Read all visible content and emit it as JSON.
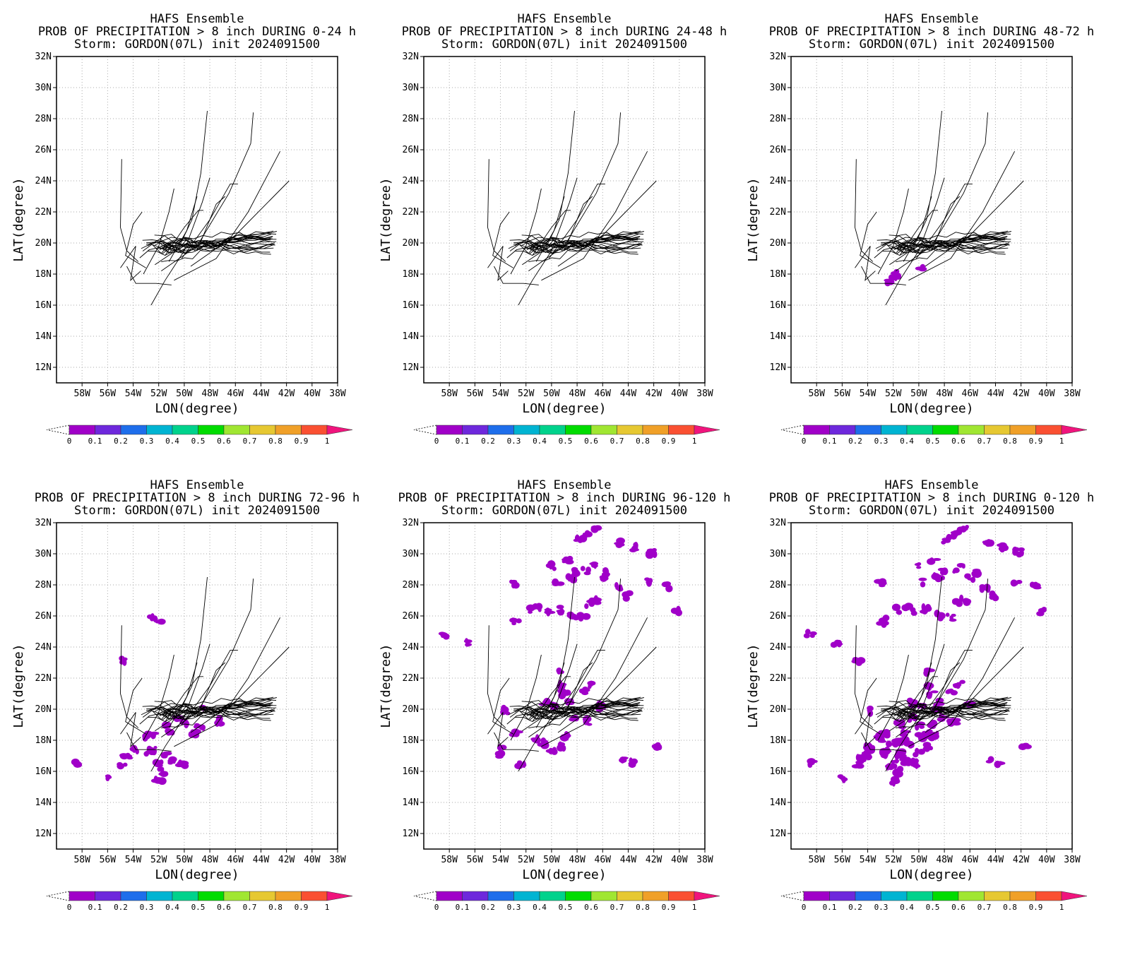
{
  "figure": {
    "colorbar": {
      "ticks": [
        "0",
        "0.1",
        "0.2",
        "0.3",
        "0.4",
        "0.5",
        "0.6",
        "0.7",
        "0.8",
        "0.9",
        "1"
      ],
      "colors": [
        "#a000c8",
        "#6e28dc",
        "#1e6eeb",
        "#00b4d2",
        "#00d28c",
        "#00dc00",
        "#a0e632",
        "#e6c832",
        "#f0a028",
        "#fa5032",
        "#f0147d"
      ]
    },
    "track_color": "#000000",
    "grid": "dotted"
  },
  "chart_data": [
    {
      "type": "map",
      "title_lines": [
        "HAFS Ensemble",
        "PROB OF PRECIPITATION > 8 inch DURING  0-24 h",
        "Storm: GORDON(07L) init 2024091500"
      ],
      "xlabel": "LON(degree)",
      "ylabel": "LAT(degree)",
      "xlim": [
        -60,
        -38
      ],
      "ylim": [
        11,
        32
      ],
      "xticks": [
        "58W",
        "56W",
        "54W",
        "52W",
        "50W",
        "48W",
        "46W",
        "44W",
        "42W",
        "40W",
        "38W"
      ],
      "yticks": [
        "32N",
        "30N",
        "28N",
        "26N",
        "24N",
        "22N",
        "20N",
        "18N",
        "16N",
        "14N",
        "12N"
      ],
      "prob_regions": []
    },
    {
      "type": "map",
      "title_lines": [
        "HAFS Ensemble",
        "PROB OF PRECIPITATION > 8 inch DURING 24-48 h",
        "Storm: GORDON(07L) init 2024091500"
      ],
      "xlabel": "LON(degree)",
      "ylabel": "LAT(degree)",
      "xlim": [
        -60,
        -38
      ],
      "ylim": [
        11,
        32
      ],
      "xticks": [
        "58W",
        "56W",
        "54W",
        "52W",
        "50W",
        "48W",
        "46W",
        "44W",
        "42W",
        "40W",
        "38W"
      ],
      "yticks": [
        "32N",
        "30N",
        "28N",
        "26N",
        "24N",
        "22N",
        "20N",
        "18N",
        "16N",
        "14N",
        "12N"
      ],
      "prob_regions": []
    },
    {
      "type": "map",
      "title_lines": [
        "HAFS Ensemble",
        "PROB OF PRECIPITATION > 8 inch DURING 48-72 h",
        "Storm: GORDON(07L) init 2024091500"
      ],
      "xlabel": "LON(degree)",
      "ylabel": "LAT(degree)",
      "xlim": [
        -60,
        -38
      ],
      "ylim": [
        11,
        32
      ],
      "xticks": [
        "58W",
        "56W",
        "54W",
        "52W",
        "50W",
        "48W",
        "46W",
        "44W",
        "42W",
        "40W",
        "38W"
      ],
      "yticks": [
        "32N",
        "30N",
        "28N",
        "26N",
        "24N",
        "22N",
        "20N",
        "18N",
        "16N",
        "14N",
        "12N"
      ],
      "prob_regions": [
        [
          -51.8,
          17.8
        ],
        [
          -52.3,
          17.6
        ],
        [
          -51.6,
          18.0
        ],
        [
          -49.8,
          18.3
        ],
        [
          -51.9,
          17.9
        ]
      ]
    },
    {
      "type": "map",
      "title_lines": [
        "HAFS Ensemble",
        "PROB OF PRECIPITATION > 8 inch DURING 72-96 h",
        "Storm: GORDON(07L) init 2024091500"
      ],
      "xlabel": "LON(degree)",
      "ylabel": "LAT(degree)",
      "xlim": [
        -60,
        -38
      ],
      "ylim": [
        11,
        32
      ],
      "xticks": [
        "58W",
        "56W",
        "54W",
        "52W",
        "50W",
        "48W",
        "46W",
        "44W",
        "42W",
        "40W",
        "38W"
      ],
      "yticks": [
        "32N",
        "30N",
        "28N",
        "26N",
        "24N",
        "22N",
        "20N",
        "18N",
        "16N",
        "14N",
        "12N"
      ],
      "prob_regions": [
        [
          -52.5,
          25.9
        ],
        [
          -52.0,
          25.7
        ],
        [
          -54.8,
          23.1
        ],
        [
          -52.5,
          17.4
        ],
        [
          -51.5,
          17.1
        ],
        [
          -52.0,
          16.5
        ],
        [
          -51.0,
          16.6
        ],
        [
          -52.8,
          17.2
        ],
        [
          -53.0,
          18.1
        ],
        [
          -50.2,
          16.5
        ],
        [
          -51.6,
          16.0
        ],
        [
          -52.0,
          15.4
        ],
        [
          -51.2,
          18.5
        ],
        [
          -50.0,
          19.0
        ],
        [
          -53.8,
          17.4
        ],
        [
          -58.3,
          16.5
        ],
        [
          -56.1,
          15.6
        ],
        [
          -54.8,
          16.5
        ],
        [
          -54.5,
          16.9
        ],
        [
          -52.6,
          18.4
        ],
        [
          -51.5,
          19.0
        ],
        [
          -49.3,
          18.4
        ],
        [
          -48.8,
          18.9
        ],
        [
          -50.5,
          19.4
        ],
        [
          -48.5,
          20.1
        ],
        [
          -47.2,
          19.2
        ]
      ]
    },
    {
      "type": "map",
      "title_lines": [
        "HAFS Ensemble",
        "PROB OF PRECIPITATION > 8 inch DURING 96-120 h",
        "Storm: GORDON(07L) init 2024091500"
      ],
      "xlabel": "LON(degree)",
      "ylabel": "LAT(degree)",
      "xlim": [
        -60,
        -38
      ],
      "ylim": [
        11,
        32
      ],
      "xticks": [
        "58W",
        "56W",
        "54W",
        "52W",
        "50W",
        "48W",
        "46W",
        "44W",
        "42W",
        "40W",
        "38W"
      ],
      "yticks": [
        "32N",
        "30N",
        "28N",
        "26N",
        "24N",
        "22N",
        "20N",
        "18N",
        "16N",
        "14N",
        "12N"
      ],
      "prob_regions": [
        [
          -47.2,
          31.3
        ],
        [
          -46.5,
          31.7
        ],
        [
          -47.8,
          30.9
        ],
        [
          -44.6,
          30.7
        ],
        [
          -43.5,
          30.4
        ],
        [
          -42.2,
          30.1
        ],
        [
          -46.5,
          29.2
        ],
        [
          -47.3,
          28.9
        ],
        [
          -46.0,
          28.5
        ],
        [
          -48.5,
          28.4
        ],
        [
          -49.5,
          28.2
        ],
        [
          -44.8,
          27.8
        ],
        [
          -44.0,
          27.3
        ],
        [
          -42.4,
          28.2
        ],
        [
          -41.0,
          27.9
        ],
        [
          -48.8,
          29.6
        ],
        [
          -48.0,
          28.9
        ],
        [
          -50.0,
          29.2
        ],
        [
          -53.0,
          28.1
        ],
        [
          -51.0,
          26.5
        ],
        [
          -51.6,
          26.4
        ],
        [
          -52.8,
          25.6
        ],
        [
          -50.3,
          26.3
        ],
        [
          -49.4,
          26.4
        ],
        [
          -48.3,
          26.0
        ],
        [
          -47.5,
          25.9
        ],
        [
          -47.0,
          26.8
        ],
        [
          -46.5,
          27.0
        ],
        [
          -45.6,
          28.8
        ],
        [
          -40.3,
          26.3
        ],
        [
          -58.5,
          24.8
        ],
        [
          -56.5,
          24.3
        ],
        [
          -49.2,
          22.5
        ],
        [
          -49.4,
          21.6
        ],
        [
          -49.0,
          21.0
        ],
        [
          -48.5,
          20.5
        ],
        [
          -49.8,
          20.3
        ],
        [
          -47.5,
          21.2
        ],
        [
          -46.8,
          21.6
        ],
        [
          -53.7,
          19.9
        ],
        [
          -52.8,
          18.4
        ],
        [
          -51.2,
          18.0
        ],
        [
          -50.6,
          17.8
        ],
        [
          -50.0,
          17.2
        ],
        [
          -49.3,
          17.6
        ],
        [
          -48.8,
          18.3
        ],
        [
          -52.3,
          16.4
        ],
        [
          -54.2,
          17.1
        ],
        [
          -53.9,
          17.5
        ],
        [
          -47.3,
          19.2
        ],
        [
          -46.0,
          20.2
        ],
        [
          -50.5,
          20.4
        ],
        [
          -44.3,
          16.8
        ],
        [
          -43.6,
          16.6
        ],
        [
          -41.7,
          17.7
        ],
        [
          -48.2,
          19.5
        ]
      ]
    },
    {
      "type": "map",
      "title_lines": [
        "HAFS Ensemble",
        "PROB OF PRECIPITATION > 8 inch DURING 0-120 h",
        "Storm: GORDON(07L) init 2024091500"
      ],
      "xlabel": "LON(degree)",
      "ylabel": "LAT(degree)",
      "xlim": [
        -60,
        -38
      ],
      "ylim": [
        11,
        32
      ],
      "xticks": [
        "58W",
        "56W",
        "54W",
        "52W",
        "50W",
        "48W",
        "46W",
        "44W",
        "42W",
        "40W",
        "38W"
      ],
      "yticks": [
        "32N",
        "30N",
        "28N",
        "26N",
        "24N",
        "22N",
        "20N",
        "18N",
        "16N",
        "14N",
        "12N"
      ],
      "prob_regions": [
        [
          -47.2,
          31.3
        ],
        [
          -46.5,
          31.7
        ],
        [
          -47.8,
          30.9
        ],
        [
          -44.6,
          30.7
        ],
        [
          -43.5,
          30.4
        ],
        [
          -42.2,
          30.1
        ],
        [
          -46.5,
          29.2
        ],
        [
          -47.3,
          28.9
        ],
        [
          -46.0,
          28.5
        ],
        [
          -48.5,
          28.4
        ],
        [
          -49.5,
          28.2
        ],
        [
          -44.8,
          27.8
        ],
        [
          -44.0,
          27.3
        ],
        [
          -42.4,
          28.2
        ],
        [
          -41.0,
          27.9
        ],
        [
          -48.8,
          29.6
        ],
        [
          -48.0,
          28.9
        ],
        [
          -50.0,
          29.2
        ],
        [
          -53.0,
          28.1
        ],
        [
          -51.0,
          26.5
        ],
        [
          -51.6,
          26.4
        ],
        [
          -52.8,
          25.6
        ],
        [
          -50.3,
          26.3
        ],
        [
          -49.4,
          26.4
        ],
        [
          -48.3,
          26.0
        ],
        [
          -47.5,
          25.9
        ],
        [
          -47.0,
          26.8
        ],
        [
          -46.5,
          27.0
        ],
        [
          -45.6,
          28.8
        ],
        [
          -40.3,
          26.3
        ],
        [
          -58.5,
          24.8
        ],
        [
          -56.5,
          24.3
        ],
        [
          -49.2,
          22.5
        ],
        [
          -49.4,
          21.6
        ],
        [
          -49.0,
          21.0
        ],
        [
          -48.5,
          20.5
        ],
        [
          -49.8,
          20.3
        ],
        [
          -47.5,
          21.2
        ],
        [
          -46.8,
          21.6
        ],
        [
          -53.7,
          19.9
        ],
        [
          -52.8,
          18.4
        ],
        [
          -51.2,
          18.0
        ],
        [
          -50.6,
          17.8
        ],
        [
          -50.0,
          17.2
        ],
        [
          -49.3,
          17.6
        ],
        [
          -48.8,
          18.3
        ],
        [
          -52.3,
          16.4
        ],
        [
          -54.2,
          17.1
        ],
        [
          -53.9,
          17.5
        ],
        [
          -47.3,
          19.2
        ],
        [
          -46.0,
          20.2
        ],
        [
          -50.5,
          20.4
        ],
        [
          -44.3,
          16.8
        ],
        [
          -43.6,
          16.6
        ],
        [
          -41.7,
          17.7
        ],
        [
          -48.2,
          19.5
        ],
        [
          -52.5,
          17.4
        ],
        [
          -51.5,
          17.1
        ],
        [
          -52.0,
          16.5
        ],
        [
          -51.0,
          16.6
        ],
        [
          -52.8,
          17.2
        ],
        [
          -53.0,
          18.1
        ],
        [
          -50.2,
          16.5
        ],
        [
          -51.6,
          16.0
        ],
        [
          -52.0,
          15.4
        ],
        [
          -51.2,
          18.5
        ],
        [
          -50.0,
          19.0
        ],
        [
          -53.8,
          17.4
        ],
        [
          -58.3,
          16.5
        ],
        [
          -56.1,
          15.6
        ],
        [
          -54.8,
          16.5
        ],
        [
          -54.5,
          16.9
        ],
        [
          -52.6,
          18.4
        ],
        [
          -51.5,
          19.0
        ],
        [
          -49.3,
          18.4
        ],
        [
          -48.8,
          18.9
        ],
        [
          -50.5,
          19.4
        ],
        [
          -48.5,
          20.1
        ],
        [
          -47.2,
          19.2
        ],
        [
          -51.8,
          17.8
        ],
        [
          -52.3,
          17.6
        ],
        [
          -51.6,
          18.0
        ],
        [
          -49.8,
          18.3
        ],
        [
          -52.5,
          25.9
        ],
        [
          -54.8,
          23.1
        ]
      ]
    }
  ]
}
